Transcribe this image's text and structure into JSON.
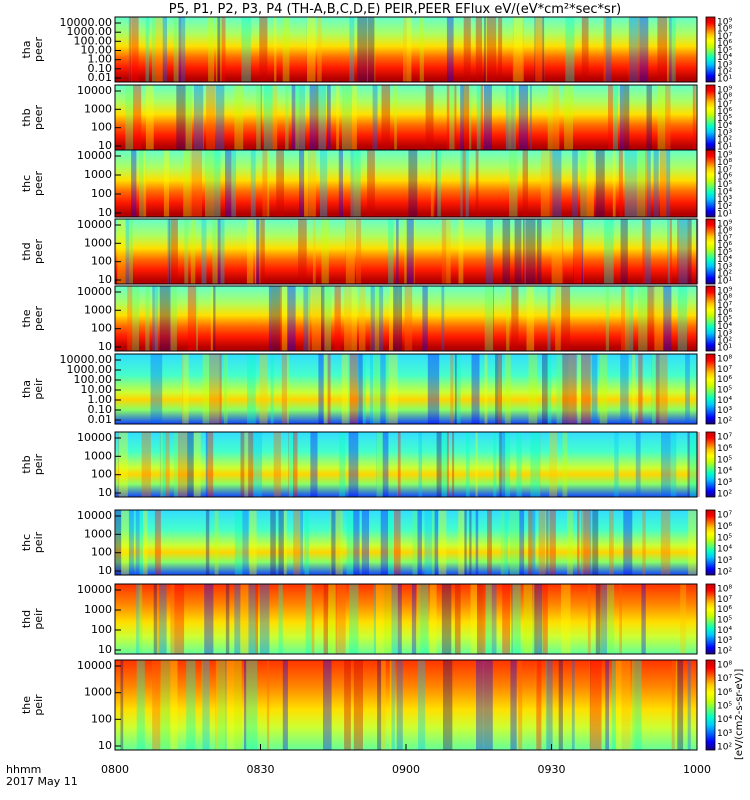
{
  "chart_data": {
    "type": "heatmap",
    "title": "P5, P1, P2, P3, P4 (TH-A,B,C,D,E) PEIR,PEER EFlux eV/(eV*cm²*sec*sr)",
    "colorbar_label": "[eV/(cm2-s-sr-eV)]",
    "x_ticks": [
      "0800",
      "0830",
      "0900",
      "0930",
      "1000"
    ],
    "x_range": [
      "0800",
      "1000"
    ],
    "footer": {
      "line1": "hhmm",
      "line2": "2017 May 11"
    },
    "panels": [
      {
        "probe": "tha",
        "species": "peer",
        "yticks": [
          "10000.00",
          "1000.00",
          "100.00",
          "10.00",
          "1.00",
          "0.10",
          "0.01"
        ],
        "cbticks": [
          "10⁹",
          "10⁸",
          "10⁷",
          "10⁶",
          "10⁵",
          "10⁴",
          "10³",
          "10²",
          "10¹"
        ]
      },
      {
        "probe": "thb",
        "species": "peer",
        "yticks": [
          "10000",
          "1000",
          "100",
          "10"
        ],
        "cbticks": [
          "10⁹",
          "10⁸",
          "10⁷",
          "10⁶",
          "10⁵",
          "10⁴",
          "10³",
          "10²",
          "10¹"
        ]
      },
      {
        "probe": "thc",
        "species": "peer",
        "yticks": [
          "10000",
          "1000",
          "100",
          "10"
        ],
        "cbticks": [
          "10⁹",
          "10⁸",
          "10⁷",
          "10⁶",
          "10⁵",
          "10⁴",
          "10³",
          "10²",
          "10¹"
        ]
      },
      {
        "probe": "thd",
        "species": "peer",
        "yticks": [
          "10000",
          "1000",
          "100",
          "10"
        ],
        "cbticks": [
          "10⁹",
          "10⁸",
          "10⁷",
          "10⁶",
          "10⁵",
          "10⁴",
          "10³",
          "10²",
          "10¹"
        ]
      },
      {
        "probe": "the",
        "species": "peer",
        "yticks": [
          "10000",
          "1000",
          "100",
          "10"
        ],
        "cbticks": [
          "10⁹",
          "10⁸",
          "10⁷",
          "10⁶",
          "10⁵",
          "10⁴",
          "10³",
          "10²",
          "10¹"
        ]
      },
      {
        "probe": "tha",
        "species": "peir",
        "yticks": [
          "10000.00",
          "1000.00",
          "100.00",
          "10.00",
          "1.00",
          "0.10",
          "0.01"
        ],
        "cbticks": [
          "10⁸",
          "10⁷",
          "10⁶",
          "10⁵",
          "10⁴",
          "10³",
          "10²"
        ]
      },
      {
        "probe": "thb",
        "species": "peir",
        "yticks": [
          "10000",
          "1000",
          "100",
          "10"
        ],
        "cbticks": [
          "10⁷",
          "10⁶",
          "10⁵",
          "10⁴",
          "10³",
          "10²"
        ]
      },
      {
        "probe": "thc",
        "species": "peir",
        "yticks": [
          "10000",
          "1000",
          "100",
          "10"
        ],
        "cbticks": [
          "10⁷",
          "10⁶",
          "10⁵",
          "10⁴",
          "10³",
          "10²"
        ]
      },
      {
        "probe": "thd",
        "species": "peir",
        "yticks": [
          "10000",
          "1000",
          "100",
          "10"
        ],
        "cbticks": [
          "10⁸",
          "10⁷",
          "10⁶",
          "10⁵",
          "10⁴",
          "10³",
          "10²"
        ]
      },
      {
        "probe": "the",
        "species": "peir",
        "yticks": [
          "10000",
          "1000",
          "100",
          "10"
        ],
        "cbticks": [
          "10⁸",
          "10⁷",
          "10⁶",
          "10⁵",
          "10⁴",
          "10³",
          "10²"
        ]
      }
    ]
  },
  "colors": {
    "background": "#ffffff",
    "axis": "#000000",
    "colormap": [
      "#1a007a",
      "#0000ff",
      "#0064ff",
      "#00c8ff",
      "#00ffc8",
      "#64ff64",
      "#c8ff00",
      "#ffff00",
      "#ffc800",
      "#ff6400",
      "#ff0000",
      "#c80000"
    ]
  }
}
